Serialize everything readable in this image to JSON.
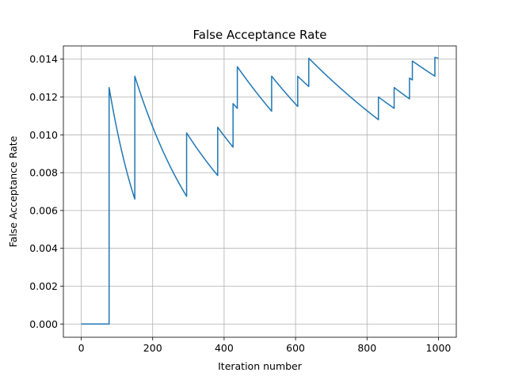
{
  "chart_data": {
    "type": "line",
    "title": "False Acceptance Rate",
    "xlabel": "Iteration number",
    "ylabel": "False Acceptance Rate",
    "xlim": [
      -50,
      1050
    ],
    "ylim": [
      -0.0007,
      0.0147
    ],
    "xticks": [
      0,
      200,
      400,
      600,
      800,
      1000
    ],
    "xtick_labels": [
      "0",
      "200",
      "400",
      "600",
      "800",
      "1000"
    ],
    "yticks": [
      0.0,
      0.002,
      0.004,
      0.006,
      0.008,
      0.01,
      0.012,
      0.014
    ],
    "ytick_labels": [
      "0.000",
      "0.002",
      "0.004",
      "0.006",
      "0.008",
      "0.010",
      "0.012",
      "0.014"
    ],
    "grid": true,
    "line_color": "#1f77b4",
    "series": [
      {
        "segments": [
          {
            "type": "flat",
            "x0": 0,
            "x1": 78,
            "y": 0.0
          },
          {
            "type": "decay",
            "x0": 78,
            "x1": 150,
            "y0": 0.0125,
            "y1": 0.0066
          },
          {
            "type": "decay",
            "x0": 150,
            "x1": 295,
            "y0": 0.0131,
            "y1": 0.00675
          },
          {
            "type": "decay",
            "x0": 295,
            "x1": 382,
            "y0": 0.0101,
            "y1": 0.00785
          },
          {
            "type": "decay",
            "x0": 382,
            "x1": 425,
            "y0": 0.0104,
            "y1": 0.00935
          },
          {
            "type": "decay",
            "x0": 425,
            "x1": 437,
            "y0": 0.01165,
            "y1": 0.0114
          },
          {
            "type": "decay",
            "x0": 437,
            "x1": 533,
            "y0": 0.0136,
            "y1": 0.01125
          },
          {
            "type": "decay",
            "x0": 533,
            "x1": 606,
            "y0": 0.0131,
            "y1": 0.0115
          },
          {
            "type": "decay",
            "x0": 606,
            "x1": 637,
            "y0": 0.0131,
            "y1": 0.01255
          },
          {
            "type": "decay",
            "x0": 637,
            "x1": 832,
            "y0": 0.01405,
            "y1": 0.0108
          },
          {
            "type": "decay",
            "x0": 832,
            "x1": 876,
            "y0": 0.012,
            "y1": 0.0114
          },
          {
            "type": "decay",
            "x0": 876,
            "x1": 919,
            "y0": 0.0125,
            "y1": 0.0119
          },
          {
            "type": "decay",
            "x0": 919,
            "x1": 927,
            "y0": 0.013,
            "y1": 0.0129
          },
          {
            "type": "decay",
            "x0": 927,
            "x1": 990,
            "y0": 0.0139,
            "y1": 0.0131
          },
          {
            "type": "decay",
            "x0": 990,
            "x1": 1000,
            "y0": 0.0141,
            "y1": 0.01405
          }
        ]
      }
    ]
  }
}
